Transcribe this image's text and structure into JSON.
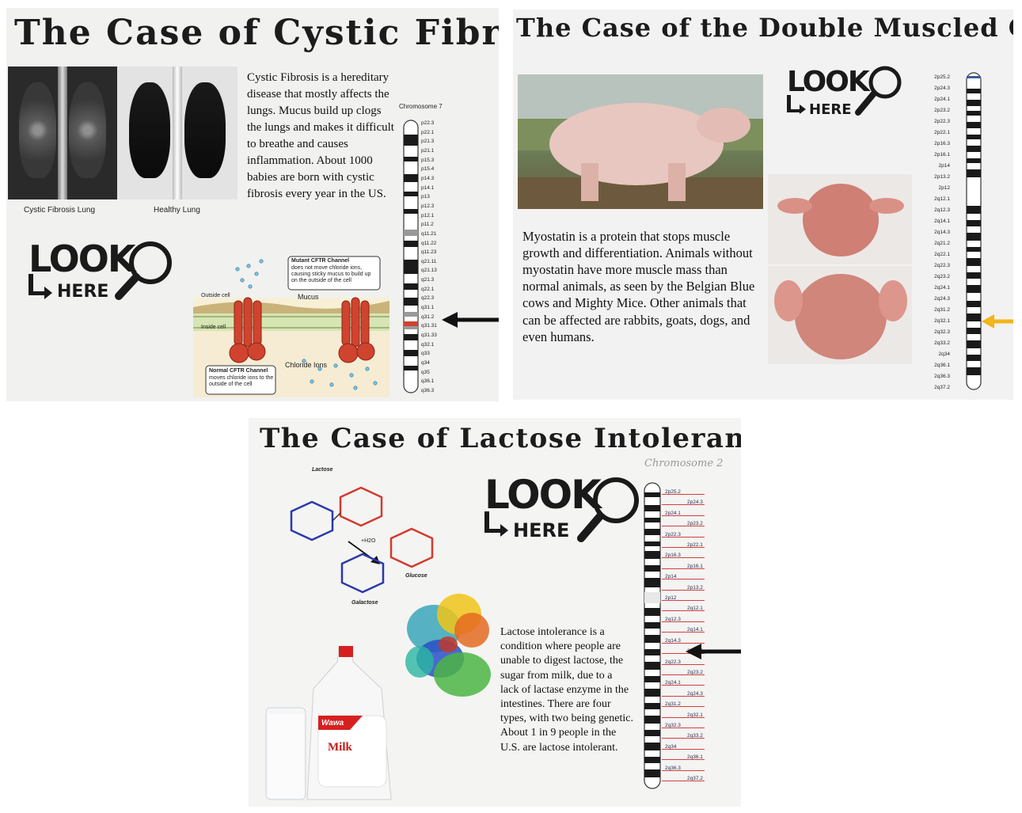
{
  "poster_cf": {
    "title": "The Case of Cystic Fibrosis",
    "label_cf_lung": "Cystic Fibrosis Lung",
    "label_healthy_lung": "Healthy Lung",
    "description": "Cystic Fibrosis is a hereditary disease that mostly affects the lungs. Mucus build up clogs the lungs and makes it difficult to breathe and causes inflammation. About 1000 babies are born with cystic fibrosis every year in the US.",
    "chromosome_title": "Chromosome 7",
    "bands": [
      "p22.3",
      "p22.1",
      "p21.3",
      "p21.1",
      "p15.3",
      "p15.4",
      "p14.3",
      "p14.1",
      "p13",
      "p12.3",
      "p12.1",
      "p11.2",
      "q11.21",
      "q11.22",
      "q11.23",
      "q21.11",
      "q21.13",
      "q21.3",
      "q22.1",
      "q22.3",
      "q31.1",
      "q31.2",
      "q31.31",
      "q31.33",
      "q32.1",
      "q33",
      "q34",
      "q35",
      "q36.1",
      "q36.3"
    ],
    "diagram": {
      "mutant_title": "Mutant CFTR Channel",
      "mutant_text": "does not move chloride ions, causing sticky mucus to build up on the outside of the cell",
      "outside_cell": "Outside cell",
      "mucus": "Mucus",
      "inside_cell": "Inside cell",
      "normal_title": "Normal CFTR Channel",
      "normal_text": "moves chloride ions to the outside of the cell",
      "chloride": "Chloride Ions"
    },
    "look1": "LOOK",
    "look2": "HERE"
  },
  "poster_cow": {
    "title": "The Case of the Double Muscled Cow",
    "description": "Myostatin is a protein that stops muscle growth and differentiation. Animals without myostatin have more muscle mass than normal animals, as seen by the Belgian Blue cows and Mighty Mice. Other animals that can be affected are rabbits, goats, dogs, and even humans.",
    "bands": [
      "2p25.2",
      "2p24.3",
      "2p24.1",
      "2p23.2",
      "2p22.3",
      "2p22.1",
      "2p16.3",
      "2p16.1",
      "2p14",
      "2p13.2",
      "2p12",
      "2q12.1",
      "2q12.3",
      "2q14.1",
      "2q14.3",
      "2q21.2",
      "2q22.1",
      "2q22.3",
      "2q23.2",
      "2q24.1",
      "2q24.3",
      "2q31.2",
      "2q32.1",
      "2q32.3",
      "2q33.2",
      "2q34",
      "2q36.1",
      "2q36.3",
      "2q37.2"
    ],
    "look1": "LOOK",
    "look2": "HERE"
  },
  "poster_lac": {
    "title": "The Case of Lactose Intolerance",
    "handwritten": "Chromosome 2",
    "description": "Lactose intolerance is a condition where people are unable to digest lactose, the sugar from milk, due to a lack of lactase enzyme in the intestines.  There are four types, with two being genetic.  About 1 in 9 people in the U.S. are lactose intolerant.",
    "mol_lactose": "Lactose",
    "mol_glucose": "Glucose",
    "mol_galactose": "Galactose",
    "water": "+H2O",
    "milk_brand": "Wawa",
    "milk_label": "Milk",
    "bands": [
      "2p25.2",
      "2p24.3",
      "2p24.1",
      "2p23.2",
      "2p22.3",
      "2p22.1",
      "2p16.3",
      "2p16.1",
      "2p14",
      "2p13.2",
      "2p12",
      "2q12.1",
      "2q12.3",
      "2q14.1",
      "2q14.3",
      "2q21.2",
      "2q22.3",
      "2q23.2",
      "2q24.1",
      "2q24.3",
      "2q31.2",
      "2q32.1",
      "2q32.3",
      "2q33.2",
      "2q34",
      "2q36.1",
      "2q36.3",
      "2q37.2"
    ],
    "look1": "LOOK",
    "look2": "HERE"
  },
  "colors": {
    "cf_red": "#d0432f",
    "mucus_tan": "#c9b37a",
    "cow_arrow": "#f2b51a",
    "sugar_blue": "#2b3aa8",
    "sugar_red": "#d33a2c"
  },
  "icons": [
    "magnifier-icon",
    "arrow-left-icon"
  ]
}
